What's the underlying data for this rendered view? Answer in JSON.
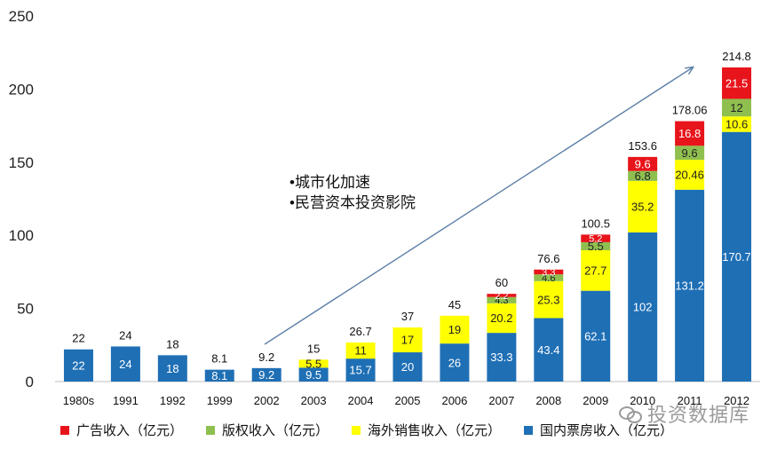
{
  "chart_data": {
    "type": "bar",
    "stacked": true,
    "categories": [
      "1980s",
      "1991",
      "1992",
      "1999",
      "2002",
      "2003",
      "2004",
      "2005",
      "2006",
      "2007",
      "2008",
      "2009",
      "2010",
      "2011",
      "2012"
    ],
    "series": [
      {
        "name": "国内票房收入（亿元）",
        "color": "#1f6fb5",
        "values": [
          22,
          24,
          18,
          8.1,
          9.2,
          9.5,
          15.7,
          20,
          26,
          33.3,
          43.4,
          62.1,
          102,
          131.2,
          170.7
        ]
      },
      {
        "name": "海外销售收入（亿元）",
        "color": "#ffff00",
        "values": [
          null,
          null,
          null,
          null,
          null,
          5.5,
          11,
          17,
          19,
          20.2,
          25.3,
          27.7,
          35.2,
          20.46,
          10.6
        ]
      },
      {
        "name": "版权收入（亿元）",
        "color": "#8fbf4f",
        "values": [
          null,
          null,
          null,
          null,
          null,
          null,
          null,
          null,
          null,
          4.3,
          4.6,
          5.5,
          6.8,
          9.6,
          12
        ]
      },
      {
        "name": "广告收入（亿元）",
        "color": "#e8141b",
        "values": [
          null,
          null,
          null,
          null,
          null,
          null,
          null,
          null,
          null,
          2.2,
          3.3,
          5.2,
          9.6,
          16.8,
          21.5
        ]
      }
    ],
    "totals": [
      22,
      24,
      18,
      8.1,
      9.2,
      15,
      26.7,
      37,
      45,
      60,
      76.6,
      100.5,
      153.6,
      178.06,
      214.8
    ],
    "yticks": [
      0,
      50,
      100,
      150,
      200,
      250
    ],
    "ylim": [
      0,
      250
    ],
    "annotations": [
      "•城市化加速",
      "•民营资本投资影院"
    ],
    "legend_order": [
      3,
      2,
      1,
      0
    ]
  },
  "watermark": "投资数据库"
}
